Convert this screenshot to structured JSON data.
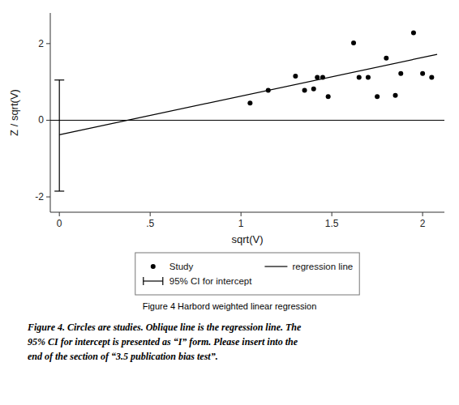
{
  "chart_data": {
    "type": "scatter",
    "xlabel": "sqrt(V)",
    "ylabel": "Z / sqrt(V)",
    "xlim": [
      -0.05,
      2.12
    ],
    "ylim": [
      -2.4,
      2.8
    ],
    "xticks": [
      0,
      {
        "value": 0.5,
        "label": ".5"
      },
      1,
      1.5,
      2
    ],
    "yticks": [
      -2,
      0,
      2
    ],
    "hline": 0.0,
    "legend": "bottom",
    "series": [
      {
        "name": "Study",
        "color": "#000000",
        "marker": "circle",
        "x": [
          1.05,
          1.15,
          1.3,
          1.35,
          1.4,
          1.42,
          1.45,
          1.48,
          1.62,
          1.65,
          1.7,
          1.75,
          1.8,
          1.85,
          1.88,
          1.95,
          2.0,
          2.05
        ],
        "values": [
          0.45,
          0.78,
          1.15,
          0.78,
          0.82,
          1.12,
          1.12,
          0.62,
          2.02,
          1.12,
          1.12,
          0.62,
          1.62,
          0.65,
          1.22,
          2.28,
          1.22,
          1.12
        ]
      },
      {
        "name": "regression line",
        "type": "line",
        "color": "#000000",
        "x": [
          0.0,
          2.08
        ],
        "values": [
          -0.38,
          1.72
        ]
      },
      {
        "name": "95% CI for intercept",
        "type": "interval",
        "color": "#000000",
        "x": [
          0.0
        ],
        "low": [
          -1.85
        ],
        "high": [
          1.05
        ]
      }
    ],
    "caption": "Figure 4 Harbord weighted linear regression",
    "notes": [
      "Figure 4. Circles are studies. Oblique line is the regression line. The",
      "95% CI for intercept is presented as “I” form. Please insert into the",
      "end of the section of “3.5 publication bias test”."
    ]
  }
}
